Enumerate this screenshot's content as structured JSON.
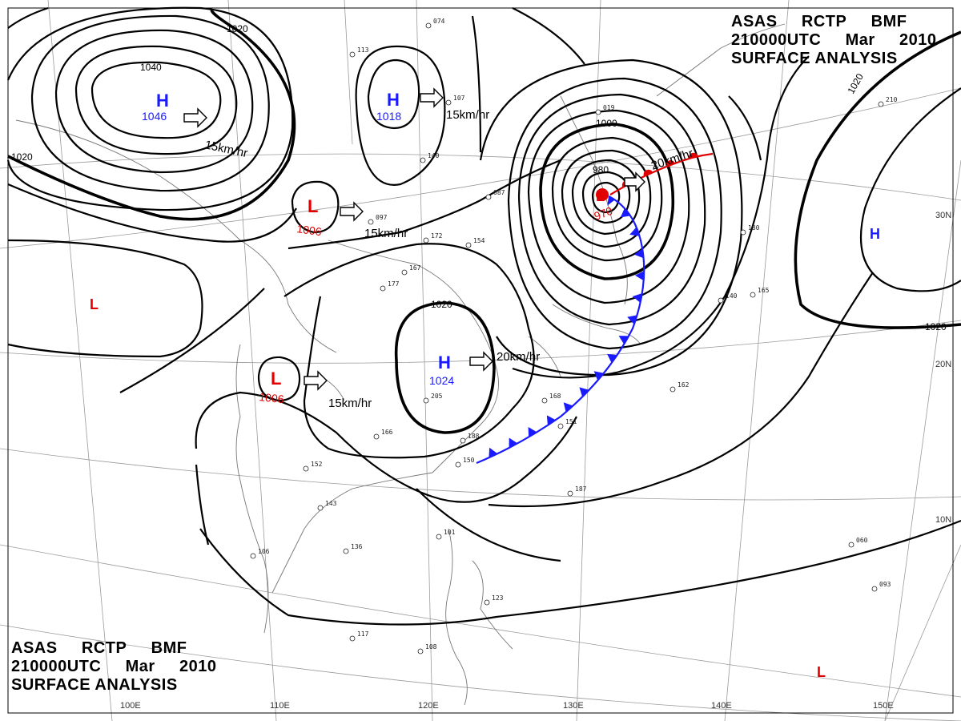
{
  "title": {
    "line1": [
      "ASAS",
      "RCTP",
      "BMF"
    ],
    "line2": [
      "210000UTC",
      "Mar",
      "2010"
    ],
    "line3": "SURFACE ANALYSIS"
  },
  "colors": {
    "high": "#1a1aff",
    "low": "#e00000",
    "cold_front": "#1a1aff",
    "warm_front": "#e00000",
    "isobar": "#000000",
    "grid": "#9a9a9a"
  },
  "pressure_centers": [
    {
      "type": "H",
      "value": "1046"
    },
    {
      "type": "H",
      "value": "1018"
    },
    {
      "type": "L",
      "value": "1006"
    },
    {
      "type": "L",
      "value": "1006"
    },
    {
      "type": "H",
      "value": "1024"
    },
    {
      "type": "L",
      "value": "970"
    },
    {
      "type": "L",
      "value": ""
    },
    {
      "type": "H",
      "value": ""
    },
    {
      "type": "L",
      "value": ""
    }
  ],
  "motion_labels": [
    "15km/hr",
    "15km/hr",
    "15km/hr",
    "15km/hr",
    "20km/hr",
    "20km/hr"
  ],
  "isobar_labels": [
    "1020",
    "1040",
    "1020",
    "1020",
    "1000",
    "980",
    "1020",
    "1020"
  ],
  "longitude_labels": [
    "100E",
    "110E",
    "120E",
    "130E",
    "140E",
    "150E"
  ],
  "latitude_labels": [
    "30N",
    "20N",
    "10N"
  ],
  "station_samples": [
    "074",
    "113",
    "107",
    "140",
    "087",
    "172",
    "154",
    "167",
    "168",
    "205",
    "162",
    "187",
    "143",
    "136",
    "101",
    "106",
    "117",
    "108",
    "123",
    "093",
    "060",
    "210",
    "180",
    "165",
    "140",
    "152",
    "166",
    "150",
    "188",
    "151",
    "177",
    "019",
    "097"
  ]
}
